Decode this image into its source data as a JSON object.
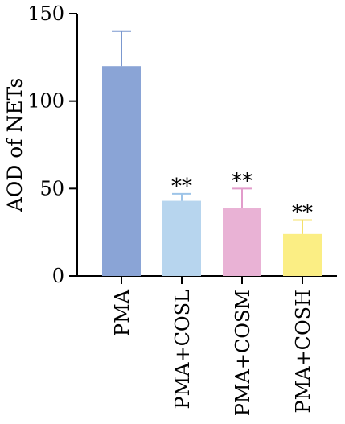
{
  "chart_data": {
    "type": "bar",
    "ylabel": "AOD of NETs",
    "xlabel": "",
    "ylim": [
      0,
      150
    ],
    "yticks": [
      0,
      50,
      100,
      150
    ],
    "categories": [
      "PMA",
      "PMA+COSL",
      "PMA+COSM",
      "PMA+COSH"
    ],
    "values": [
      120,
      43,
      39,
      24
    ],
    "error_upper": [
      140,
      47,
      50,
      32
    ],
    "annotations": [
      "",
      "**",
      "**",
      "**"
    ],
    "colors": [
      "#8aa4d6",
      "#b7d5ee",
      "#e9b2d5",
      "#fbee84"
    ],
    "error_colors": [
      "#7b98cf",
      "#9ec4e8",
      "#e29ccb",
      "#f4e06a"
    ],
    "grid": false,
    "legend": "none"
  }
}
